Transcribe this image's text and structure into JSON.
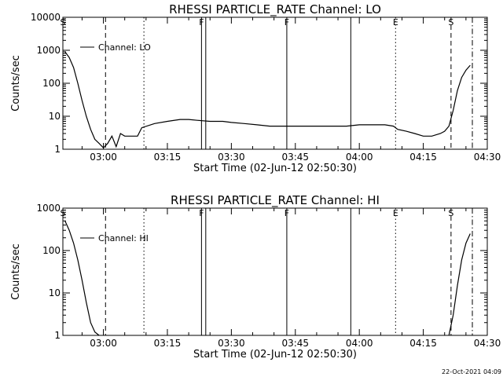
{
  "footer_timestamp": "22-Oct-2021 04:09",
  "chart_data": [
    {
      "type": "line",
      "title": "RHESSI PARTICLE_RATE Channel: LO",
      "xlabel": "Start Time (02-Jun-12 02:50:30)",
      "ylabel": "Counts/sec",
      "y_scale": "log",
      "ylim": [
        1,
        10000
      ],
      "y_ticks": [
        1,
        10,
        100,
        1000,
        10000
      ],
      "y_tick_labels": [
        "1",
        "10",
        "100",
        "1000",
        "10000"
      ],
      "x_ticks": [
        "03:00",
        "03:15",
        "03:30",
        "03:45",
        "04:00",
        "04:15",
        "04:30"
      ],
      "xlim": [
        "02:50:30",
        "04:30"
      ],
      "legend": {
        "label": "Channel: LO",
        "placement": "top-left"
      },
      "series": [
        {
          "x": [
            "02:51",
            "02:52",
            "02:53",
            "02:54",
            "02:55",
            "02:56",
            "02:57",
            "02:58",
            "02:59",
            "03:00",
            "03:01",
            "03:02",
            "03:03",
            "03:04",
            "03:05",
            "03:06",
            "03:07",
            "03:08",
            "03:09",
            "03:12",
            "03:15",
            "03:18",
            "03:20",
            "03:22",
            "03:25",
            "03:28",
            "03:30",
            "03:33",
            "03:36",
            "03:39",
            "03:42",
            "03:45",
            "03:48",
            "03:51",
            "03:54",
            "03:57",
            "04:00",
            "04:03",
            "04:06",
            "04:08",
            "04:09",
            "04:11",
            "04:13",
            "04:15",
            "04:17",
            "04:19",
            "04:20",
            "04:21",
            "04:22",
            "04:23",
            "04:24",
            "04:25",
            "04:26"
          ],
          "values": [
            900,
            600,
            300,
            100,
            30,
            10,
            4,
            2,
            1.5,
            1.1,
            1.5,
            2.5,
            1.2,
            3,
            2.5,
            2.5,
            2.5,
            2.5,
            4.5,
            6,
            7,
            8,
            8,
            7.5,
            7,
            7,
            6.5,
            6,
            5.5,
            5,
            5,
            5,
            5,
            5,
            5,
            5,
            5.5,
            5.5,
            5.5,
            5,
            4,
            3.5,
            3,
            2.5,
            2.5,
            3,
            3.5,
            5,
            15,
            60,
            150,
            250,
            350
          ]
        }
      ],
      "annotations": [
        {
          "label": "S",
          "time": "02:50:30",
          "style": "solid"
        },
        {
          "label": "",
          "time": "03:00:30",
          "style": "dashed"
        },
        {
          "label": "",
          "time": "03:09:30",
          "style": "dotted"
        },
        {
          "label": "F",
          "time": "03:23:00",
          "style": "solid"
        },
        {
          "label": "",
          "time": "03:24:00",
          "style": "solid"
        },
        {
          "label": "F",
          "time": "03:43:00",
          "style": "solid"
        },
        {
          "label": "",
          "time": "03:58:00",
          "style": "solid"
        },
        {
          "label": "E",
          "time": "04:08:30",
          "style": "dotted"
        },
        {
          "label": "S",
          "time": "04:21:30",
          "style": "dashed"
        },
        {
          "label": "",
          "time": "04:26:30",
          "style": "dashdot"
        }
      ]
    },
    {
      "type": "line",
      "title": "RHESSI PARTICLE_RATE Channel: HI",
      "xlabel": "Start Time (02-Jun-12 02:50:30)",
      "ylabel": "Counts/sec",
      "y_scale": "log",
      "ylim": [
        1,
        1000
      ],
      "y_ticks": [
        1,
        10,
        100,
        1000
      ],
      "y_tick_labels": [
        "1",
        "10",
        "100",
        "1000"
      ],
      "x_ticks": [
        "03:00",
        "03:15",
        "03:30",
        "03:45",
        "04:00",
        "04:15",
        "04:30"
      ],
      "xlim": [
        "02:50:30",
        "04:30"
      ],
      "legend": {
        "label": "Channel: HI",
        "placement": "top-left"
      },
      "series": [
        {
          "x": [
            "02:51",
            "02:52",
            "02:53",
            "02:54",
            "02:55",
            "02:56",
            "02:57",
            "02:58",
            "02:59"
          ],
          "values": [
            500,
            300,
            150,
            60,
            20,
            6,
            2,
            1.2,
            1.0
          ],
          "x2": [
            "04:21",
            "04:22",
            "04:23",
            "04:24",
            "04:25",
            "04:26"
          ],
          "values2": [
            1.0,
            3,
            15,
            60,
            150,
            250
          ]
        }
      ],
      "annotations": [
        {
          "label": "S",
          "time": "02:50:30",
          "style": "solid"
        },
        {
          "label": "",
          "time": "03:00:30",
          "style": "dashed"
        },
        {
          "label": "",
          "time": "03:09:30",
          "style": "dotted"
        },
        {
          "label": "F",
          "time": "03:23:00",
          "style": "solid"
        },
        {
          "label": "",
          "time": "03:24:00",
          "style": "solid"
        },
        {
          "label": "F",
          "time": "03:43:00",
          "style": "solid"
        },
        {
          "label": "",
          "time": "03:58:00",
          "style": "solid"
        },
        {
          "label": "E",
          "time": "04:08:30",
          "style": "dotted"
        },
        {
          "label": "S",
          "time": "04:21:30",
          "style": "dashed"
        },
        {
          "label": "",
          "time": "04:26:30",
          "style": "dashdot"
        }
      ]
    }
  ]
}
